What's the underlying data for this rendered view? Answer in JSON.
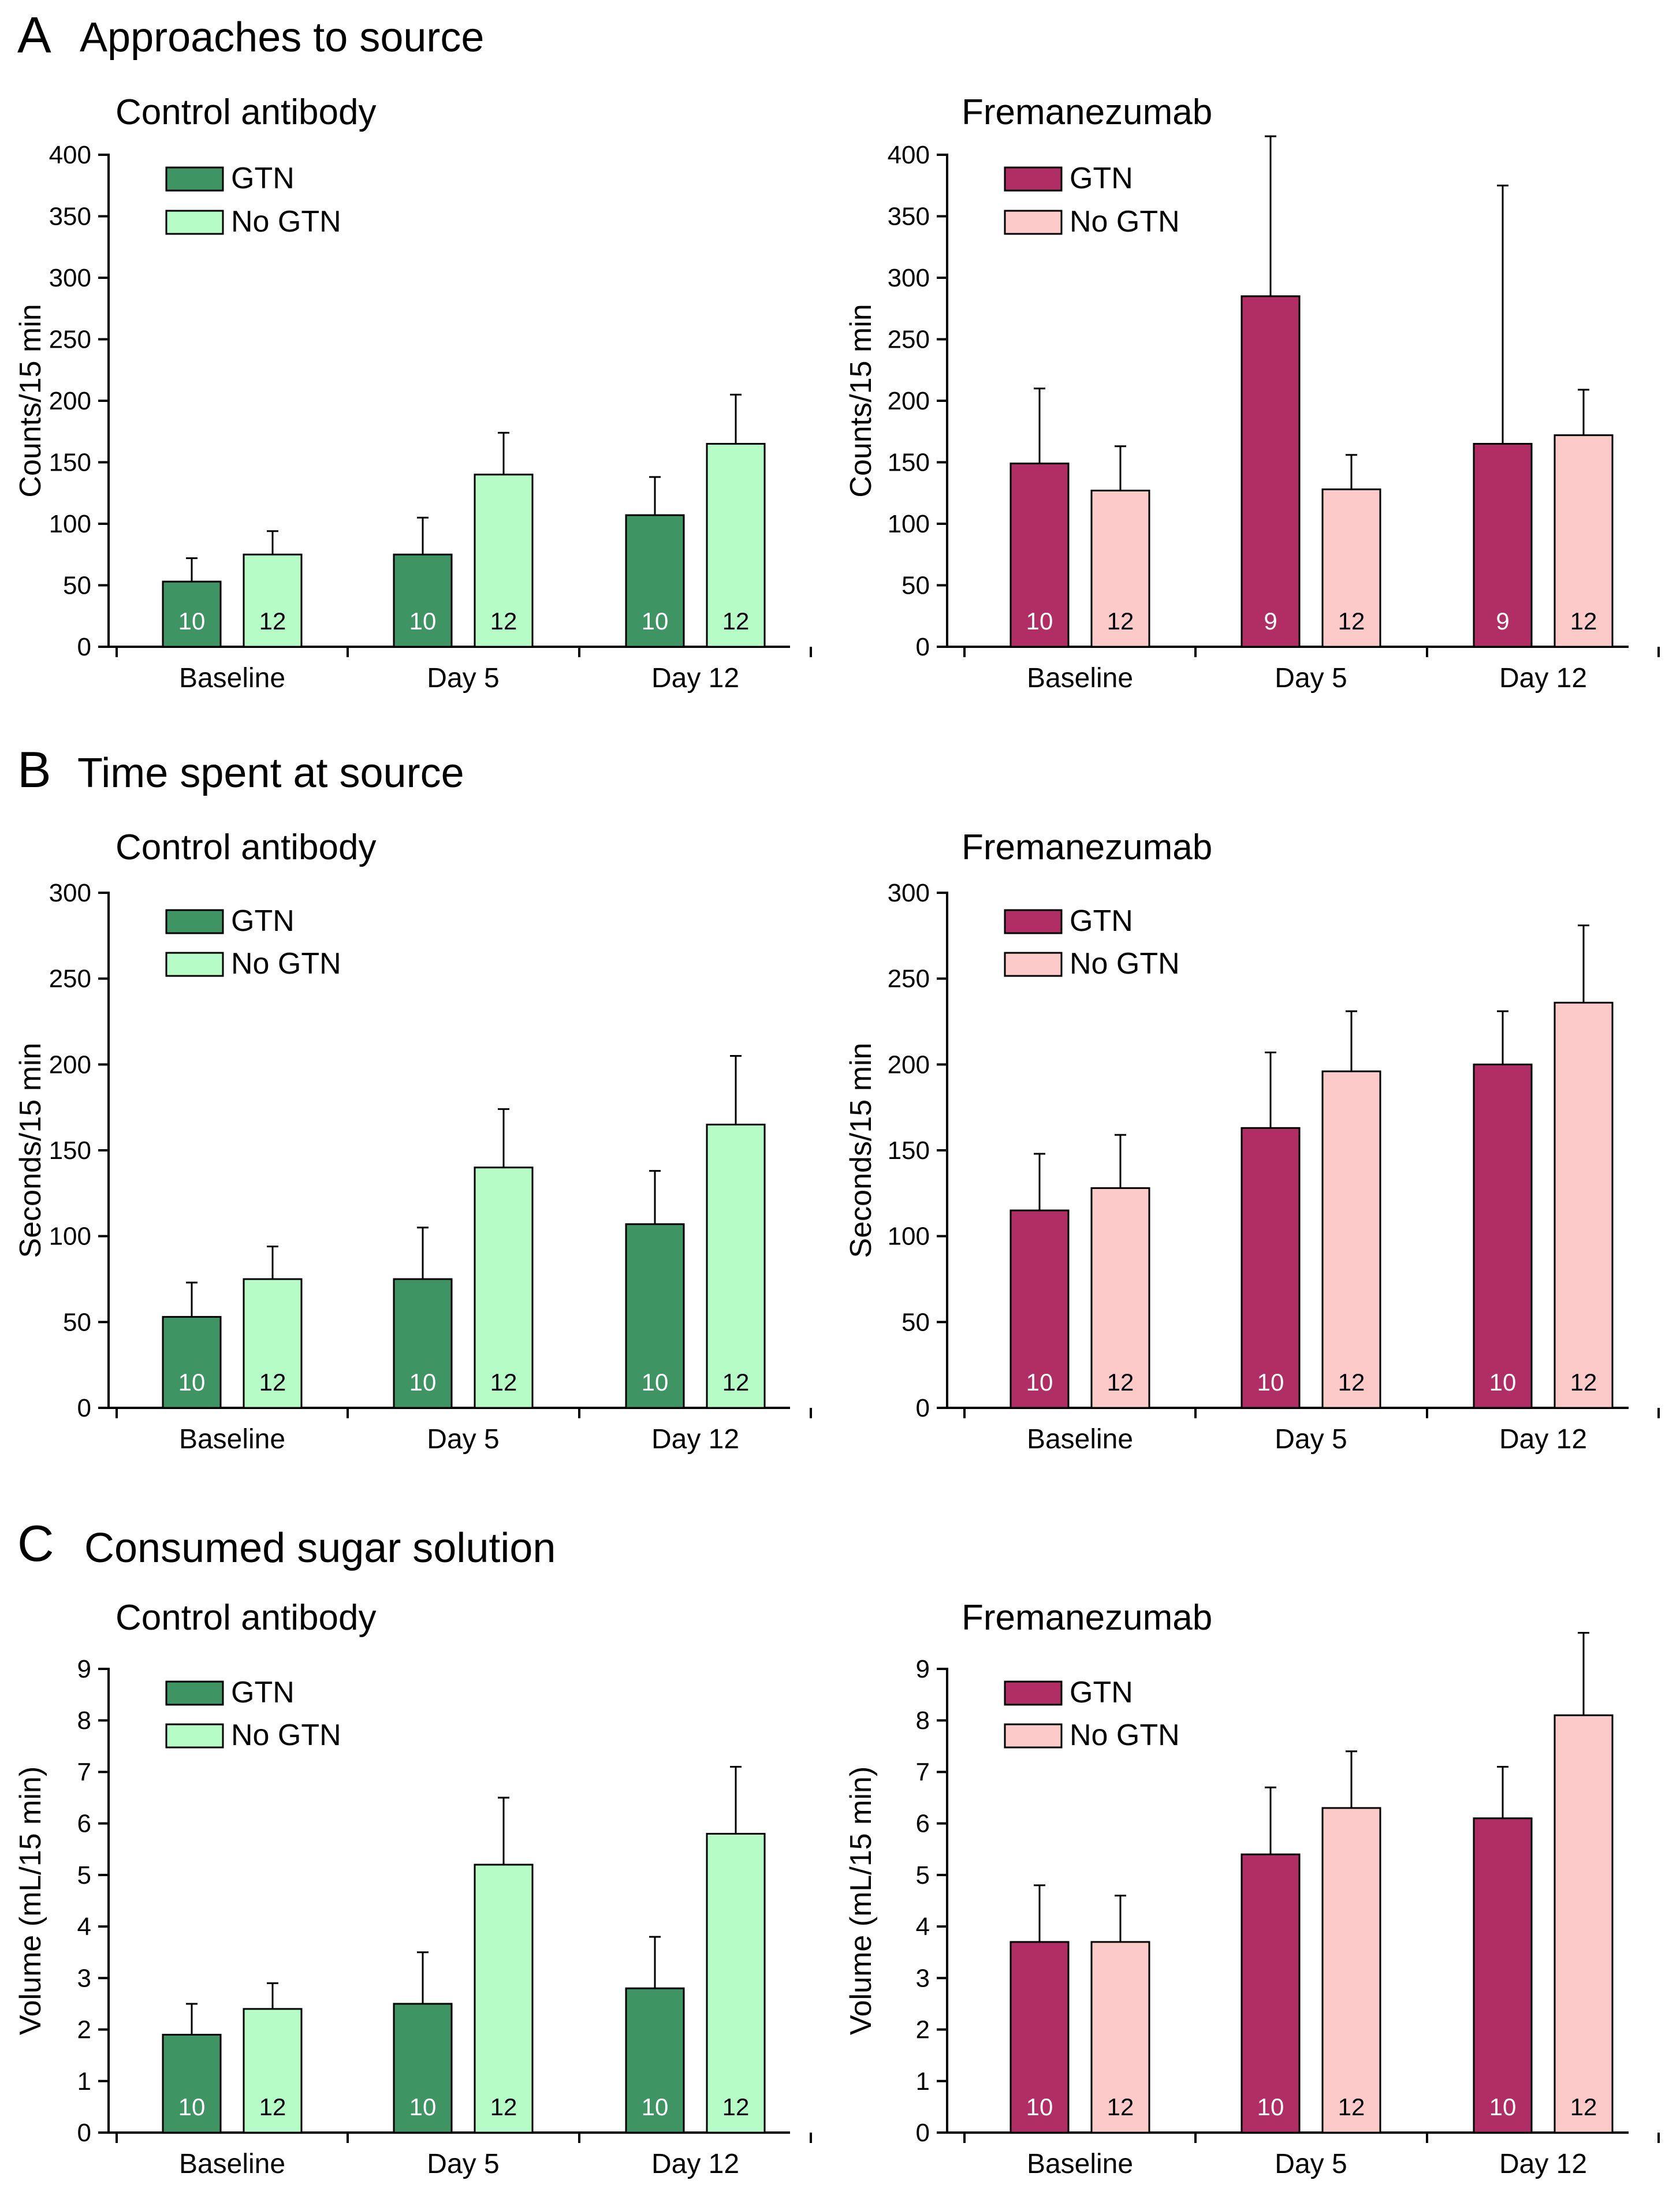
{
  "sections": [
    {
      "letter": "A",
      "title": "Approaches to source"
    },
    {
      "letter": "B",
      "title": "Time spent at source"
    },
    {
      "letter": "C",
      "title": "Consumed sugar solution"
    }
  ],
  "colors": {
    "control_gtn": "#3e9563",
    "control_nogtn": "#b5fcc6",
    "frem_gtn": "#b02e63",
    "frem_nogtn": "#fdcaca",
    "axis": "#000000",
    "n_label": "#ffffff",
    "n_label_light": "#000000"
  },
  "chart_data": [
    {
      "type": "bar",
      "section": "A",
      "title": "Control antibody",
      "ylabel": "Counts/15 min",
      "ylim": [
        0,
        400
      ],
      "yticks": [
        "0",
        "50",
        "100",
        "150",
        "200",
        "250",
        "300",
        "350",
        "400"
      ],
      "categories": [
        "Baseline",
        "Day 5",
        "Day 12"
      ],
      "legend": [
        "GTN",
        "No GTN"
      ],
      "legend_position": "top-left",
      "series": [
        {
          "name": "GTN",
          "values": [
            53,
            75,
            107
          ],
          "errors": [
            19,
            30,
            31
          ],
          "n": [
            "10",
            "10",
            "10"
          ]
        },
        {
          "name": "No GTN",
          "values": [
            75,
            140,
            165
          ],
          "errors": [
            19,
            34,
            40
          ],
          "n": [
            "12",
            "12",
            "12"
          ]
        }
      ]
    },
    {
      "type": "bar",
      "section": "A",
      "title": "Fremanezumab",
      "ylabel": "Counts/15 min",
      "ylim": [
        0,
        400
      ],
      "yticks": [
        "0",
        "50",
        "100",
        "150",
        "200",
        "250",
        "300",
        "350",
        "400"
      ],
      "categories": [
        "Baseline",
        "Day 5",
        "Day 12"
      ],
      "legend": [
        "GTN",
        "No GTN"
      ],
      "legend_position": "top-left",
      "series": [
        {
          "name": "GTN",
          "values": [
            149,
            285,
            165
          ],
          "errors": [
            61,
            130,
            210
          ],
          "n": [
            "10",
            "9",
            "9"
          ]
        },
        {
          "name": "No GTN",
          "values": [
            127,
            128,
            172
          ],
          "errors": [
            36,
            28,
            37
          ],
          "n": [
            "12",
            "12",
            "12"
          ]
        }
      ]
    },
    {
      "type": "bar",
      "section": "B",
      "title": "Control antibody",
      "ylabel": "Seconds/15 min",
      "ylim": [
        0,
        300
      ],
      "yticks": [
        "0",
        "50",
        "100",
        "150",
        "200",
        "250",
        "300"
      ],
      "categories": [
        "Baseline",
        "Day 5",
        "Day 12"
      ],
      "legend": [
        "GTN",
        "No GTN"
      ],
      "legend_position": "top-left",
      "series": [
        {
          "name": "GTN",
          "values": [
            53,
            75,
            107
          ],
          "errors": [
            20,
            30,
            31
          ],
          "n": [
            "10",
            "10",
            "10"
          ]
        },
        {
          "name": "No GTN",
          "values": [
            75,
            140,
            165
          ],
          "errors": [
            19,
            34,
            40
          ],
          "n": [
            "12",
            "12",
            "12"
          ]
        }
      ]
    },
    {
      "type": "bar",
      "section": "B",
      "title": "Fremanezumab",
      "ylabel": "Seconds/15 min",
      "ylim": [
        0,
        300
      ],
      "yticks": [
        "0",
        "50",
        "100",
        "150",
        "200",
        "250",
        "300"
      ],
      "categories": [
        "Baseline",
        "Day 5",
        "Day 12"
      ],
      "legend": [
        "GTN",
        "No GTN"
      ],
      "legend_position": "top-left",
      "series": [
        {
          "name": "GTN",
          "values": [
            115,
            163,
            200
          ],
          "errors": [
            33,
            44,
            31
          ],
          "n": [
            "10",
            "10",
            "10"
          ]
        },
        {
          "name": "No GTN",
          "values": [
            128,
            196,
            236
          ],
          "errors": [
            31,
            35,
            45
          ],
          "n": [
            "12",
            "12",
            "12"
          ]
        }
      ]
    },
    {
      "type": "bar",
      "section": "C",
      "title": "Control antibody",
      "ylabel": "Volume (mL/15 min)",
      "ylim": [
        0,
        9
      ],
      "yticks": [
        "0",
        "1",
        "2",
        "3",
        "4",
        "5",
        "6",
        "7",
        "8",
        "9"
      ],
      "categories": [
        "Baseline",
        "Day 5",
        "Day 12"
      ],
      "legend": [
        "GTN",
        "No GTN"
      ],
      "legend_position": "top-left",
      "series": [
        {
          "name": "GTN",
          "values": [
            1.9,
            2.5,
            2.8
          ],
          "errors": [
            0.6,
            1.0,
            1.0
          ],
          "n": [
            "10",
            "10",
            "10"
          ]
        },
        {
          "name": "No GTN",
          "values": [
            2.4,
            5.2,
            5.8
          ],
          "errors": [
            0.5,
            1.3,
            1.3
          ],
          "n": [
            "12",
            "12",
            "12"
          ]
        }
      ]
    },
    {
      "type": "bar",
      "section": "C",
      "title": "Fremanezumab",
      "ylabel": "Volume (mL/15 min)",
      "ylim": [
        0,
        9
      ],
      "yticks": [
        "0",
        "1",
        "2",
        "3",
        "4",
        "5",
        "6",
        "7",
        "8",
        "9"
      ],
      "categories": [
        "Baseline",
        "Day 5",
        "Day 12"
      ],
      "legend": [
        "GTN",
        "No GTN"
      ],
      "legend_position": "top-left",
      "series": [
        {
          "name": "GTN",
          "values": [
            3.7,
            5.4,
            6.1
          ],
          "errors": [
            1.1,
            1.3,
            1.0
          ],
          "n": [
            "10",
            "10",
            "10"
          ]
        },
        {
          "name": "No GTN",
          "values": [
            3.7,
            6.3,
            8.1
          ],
          "errors": [
            0.9,
            1.1,
            1.6
          ],
          "n": [
            "12",
            "12",
            "12"
          ]
        }
      ]
    }
  ]
}
